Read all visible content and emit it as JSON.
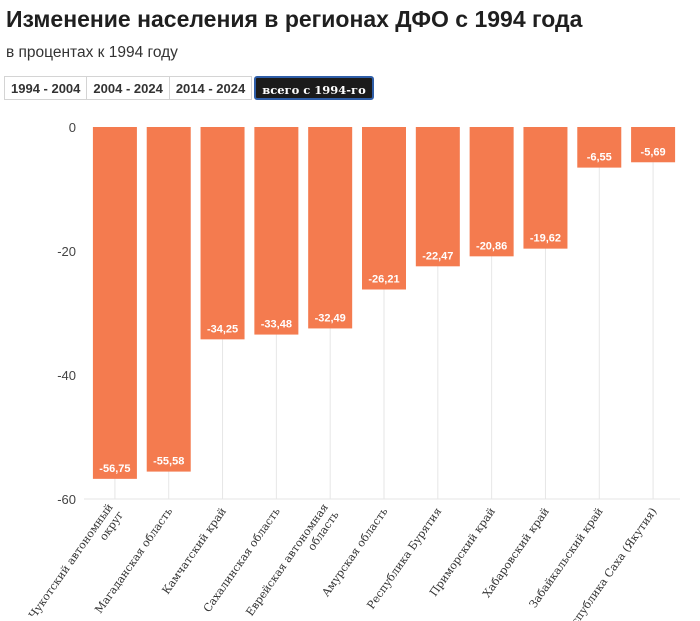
{
  "header": {
    "title": "Изменение населения в регионах ДФО с 1994 года",
    "subtitle": "в процентах к 1994 году"
  },
  "tabs": [
    {
      "label": "1994 - 2004",
      "active": false
    },
    {
      "label": "2004 - 2024",
      "active": false
    },
    {
      "label": "2014 - 2024",
      "active": false
    },
    {
      "label": "всего с 1994-го",
      "active": true
    }
  ],
  "colors": {
    "bar": "#f47b4f",
    "grid": "#e6e6e6"
  },
  "chart_data": {
    "type": "bar",
    "title": "Изменение населения в регионах ДФО с 1994 года",
    "subtitle": "в процентах к 1994 году",
    "categories": [
      [
        "Чукотский автономный",
        "округ"
      ],
      [
        "Магаданская область"
      ],
      [
        "Камчатский край"
      ],
      [
        "Сахалинская область"
      ],
      [
        "Еврейская автономная",
        "область"
      ],
      [
        "Амурская область"
      ],
      [
        "Республика Бурятия"
      ],
      [
        "Приморский край"
      ],
      [
        "Хабаровский край"
      ],
      [
        "Забайкальский край"
      ],
      [
        "Республика Саха (Якутия)"
      ]
    ],
    "values": [
      -56.75,
      -55.58,
      -34.25,
      -33.48,
      -32.49,
      -26.21,
      -22.47,
      -20.86,
      -19.62,
      -6.55,
      -5.69
    ],
    "value_labels": [
      "-56,75",
      "-55,58",
      "-34,25",
      "-33,48",
      "-32,49",
      "-26,21",
      "-22,47",
      "-20,86",
      "-19,62",
      "-6,55",
      "-5,69"
    ],
    "yticks": [
      0,
      -20,
      -40,
      -60
    ],
    "ylim": [
      -60,
      0
    ],
    "grid": true
  }
}
